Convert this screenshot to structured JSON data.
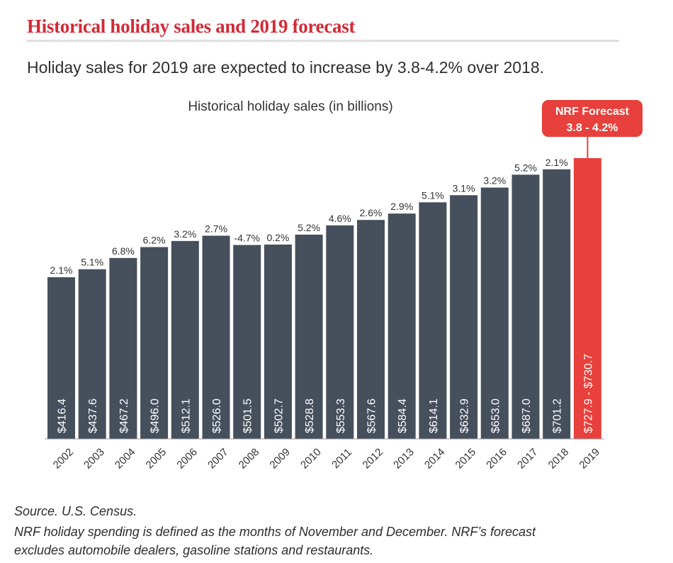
{
  "header": {
    "title": "Historical holiday sales and 2019 forecast",
    "subtitle": "Holiday sales for 2019 are expected to increase by 3.8-4.2% over 2018."
  },
  "footnotes": {
    "source": "Source. U.S. Census.",
    "line1": "NRF holiday spending is defined as the months of November and December. NRF’s forecast",
    "line2": "excludes automobile dealers, gasoline stations and restaurants."
  },
  "colors": {
    "bar": "#464f5c",
    "forecast": "#e8403c",
    "title": "#d42a36"
  },
  "chart_data": {
    "type": "bar",
    "title": "Historical holiday sales (in billions)",
    "xlabel": "",
    "ylabel": "",
    "categories": [
      "2002",
      "2003",
      "2004",
      "2005",
      "2006",
      "2007",
      "2008",
      "2009",
      "2010",
      "2011",
      "2012",
      "2013",
      "2014",
      "2015",
      "2016",
      "2017",
      "2018",
      "2019"
    ],
    "values": [
      416.4,
      437.6,
      467.2,
      496.0,
      512.1,
      526.0,
      501.5,
      502.7,
      528.8,
      553.3,
      567.6,
      584.4,
      614.1,
      632.9,
      653.0,
      687.0,
      701.2,
      730.7
    ],
    "value_labels": [
      "$416.4",
      "$437.6",
      "$467.2",
      "$496.0",
      "$512.1",
      "$526.0",
      "$501.5",
      "$502.7",
      "$528.8",
      "$553.3",
      "$567.6",
      "$584.4",
      "$614.1",
      "$632.9",
      "$653.0",
      "$687.0",
      "$701.2",
      "$727.9 - $730.7"
    ],
    "growth_labels": [
      "2.1%",
      "5.1%",
      "6.8%",
      "6.2%",
      "3.2%",
      "2.7%",
      "-4.7%",
      "0.2%",
      "5.2%",
      "4.6%",
      "2.6%",
      "2.9%",
      "5.1%",
      "3.1%",
      "3.2%",
      "5.2%",
      "2.1%",
      ""
    ],
    "forecast_index": 17,
    "forecast_callout": {
      "line1": "NRF Forecast",
      "line2": "3.8 - 4.2%"
    },
    "ylim": [
      0,
      730.7
    ],
    "grid": false,
    "legend": "none"
  }
}
